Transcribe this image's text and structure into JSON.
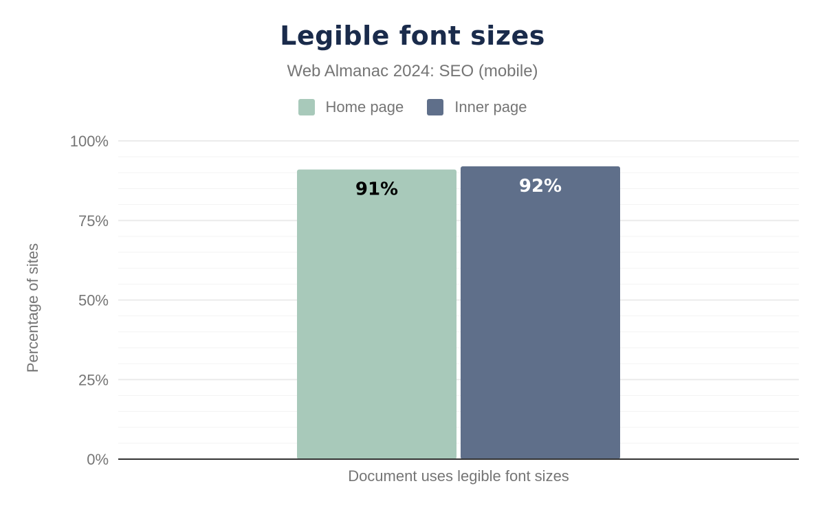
{
  "chart_data": {
    "type": "bar",
    "title": "Legible font sizes",
    "subtitle": "Web Almanac 2024: SEO (mobile)",
    "categories": [
      "Document uses legible font sizes"
    ],
    "series": [
      {
        "name": "Home page",
        "values": [
          91
        ],
        "color": "#a8c9ba",
        "label_color": "#000000",
        "labels": [
          "91%"
        ]
      },
      {
        "name": "Inner page",
        "values": [
          92
        ],
        "color": "#5f6f8a",
        "label_color": "#ffffff",
        "labels": [
          "92%"
        ]
      }
    ],
    "xlabel": "Document uses legible font sizes",
    "ylabel": "Percentage of sites",
    "ylim": [
      0,
      100
    ],
    "yticks": [
      "0%",
      "25%",
      "50%",
      "75%",
      "100%"
    ],
    "grid": true,
    "legend": "top"
  }
}
